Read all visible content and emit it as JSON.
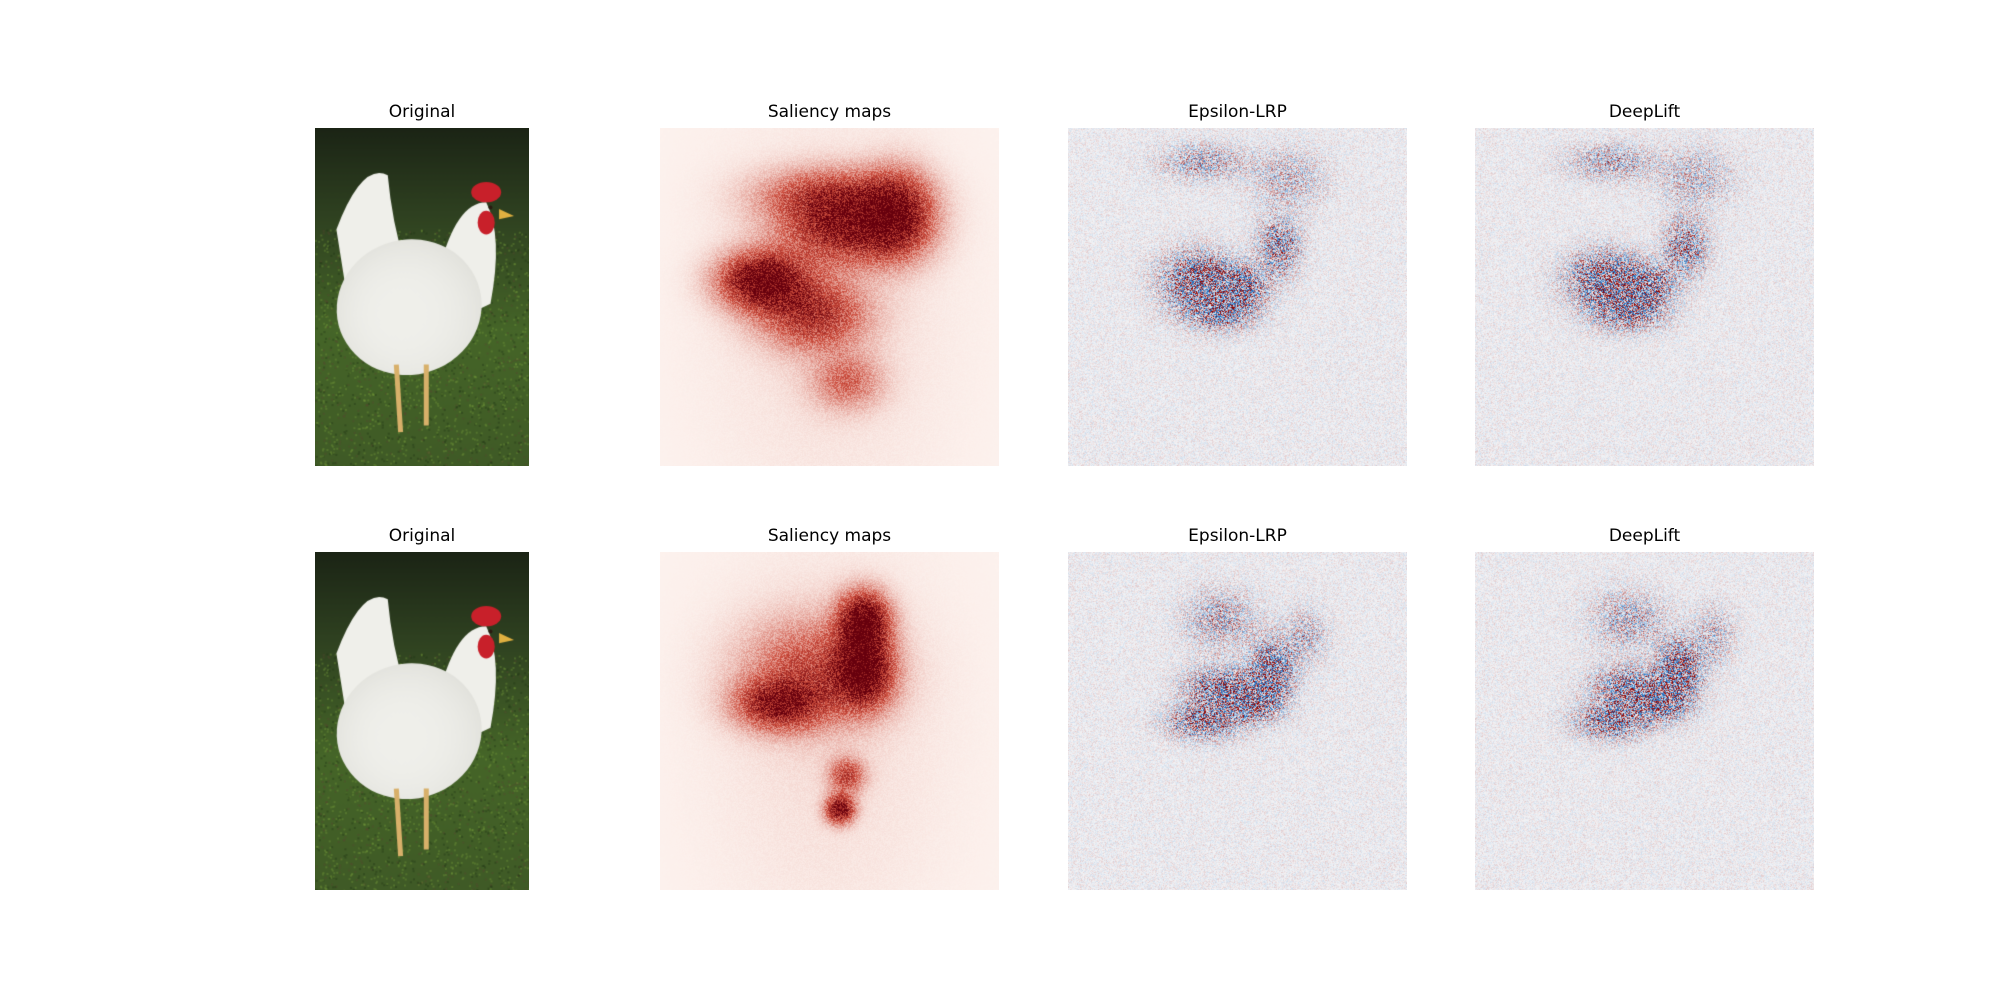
{
  "figure": {
    "rows": [
      {
        "panels": [
          {
            "title": "Original",
            "kind": "photo"
          },
          {
            "title": "Saliency maps",
            "kind": "saliency",
            "colormap": "Reds"
          },
          {
            "title": "Epsilon-LRP",
            "kind": "attribution",
            "colormap": "seismic"
          },
          {
            "title": "DeepLift",
            "kind": "attribution",
            "colormap": "seismic"
          }
        ]
      },
      {
        "panels": [
          {
            "title": "Original",
            "kind": "photo"
          },
          {
            "title": "Saliency maps",
            "kind": "saliency",
            "colormap": "Reds"
          },
          {
            "title": "Epsilon-LRP",
            "kind": "attribution",
            "colormap": "seismic"
          },
          {
            "title": "DeepLift",
            "kind": "attribution",
            "colormap": "seismic"
          }
        ]
      }
    ]
  },
  "colors": {
    "background": "#ffffff",
    "grass": "#4a6a2a",
    "dark_background": "#1f2a17",
    "hen_body": "#f1f1ee",
    "comb": "#c8202a",
    "legs": "#d8b06a",
    "saliency_high": "#67000d",
    "saliency_mid": "#cb4a3a",
    "saliency_low": "#fbe5dc",
    "positive_attr": "#8b0000",
    "negative_attr": "#1f6fc0",
    "neutral_attr": "#f4f4f6"
  }
}
